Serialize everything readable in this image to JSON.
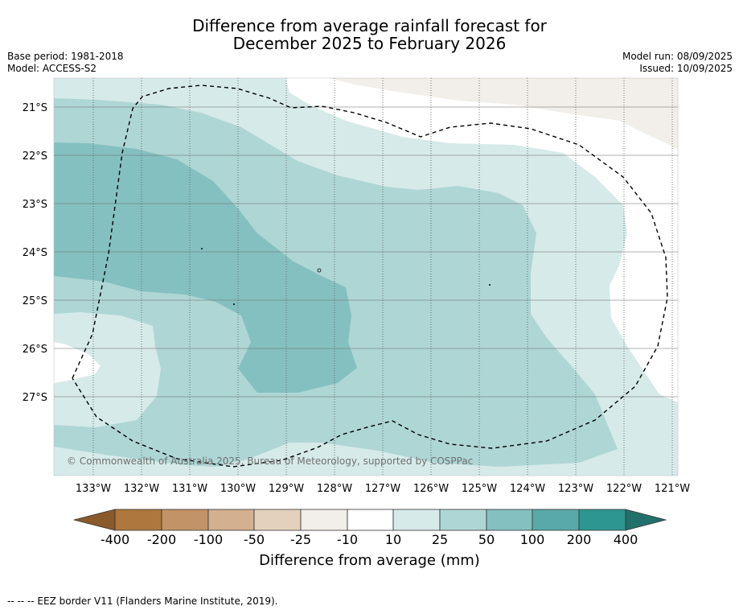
{
  "header": {
    "title_line1": "Difference from average rainfall forecast for",
    "title_line2": "December 2025 to February 2026",
    "base_period": "Base period: 1981-2018",
    "model": "Model: ACCESS-S2",
    "model_run": "Model run: 08/09/2025",
    "issued": "Issued: 10/09/2025"
  },
  "map": {
    "lon_labels": [
      "133°W",
      "132°W",
      "131°W",
      "130°W",
      "129°W",
      "128°W",
      "127°W",
      "126°W",
      "125°W",
      "124°W",
      "123°W",
      "122°W",
      "121°W"
    ],
    "lat_labels": [
      "21°S",
      "22°S",
      "23°S",
      "24°S",
      "25°S",
      "26°S",
      "27°S"
    ],
    "copyright": "© Commonwealth of Australia 2025, Bureau of Meteorology, supported by COSPPac",
    "colors": {
      "band_10_25": "#d6eae9",
      "band_25_50": "#aed6d5",
      "band_50_100": "#85c0c0",
      "band_neg_25_neg_10": "#f2efea"
    }
  },
  "colorbar": {
    "labels": [
      "-400",
      "-200",
      "-100",
      "-50",
      "-25",
      "-10",
      "10",
      "25",
      "50",
      "100",
      "200",
      "400"
    ],
    "colors": [
      "#8a5a2b",
      "#ae773d",
      "#c29366",
      "#d3b08f",
      "#e3d1bd",
      "#f2efea",
      "#ffffff",
      "#d6eae9",
      "#aed6d5",
      "#85c0c0",
      "#5aa9a9",
      "#2e9691",
      "#22706c"
    ],
    "title": "Difference from average (mm)"
  },
  "footnote": "--  --  -- EEZ border V11 (Flanders Marine Institute, 2019)."
}
